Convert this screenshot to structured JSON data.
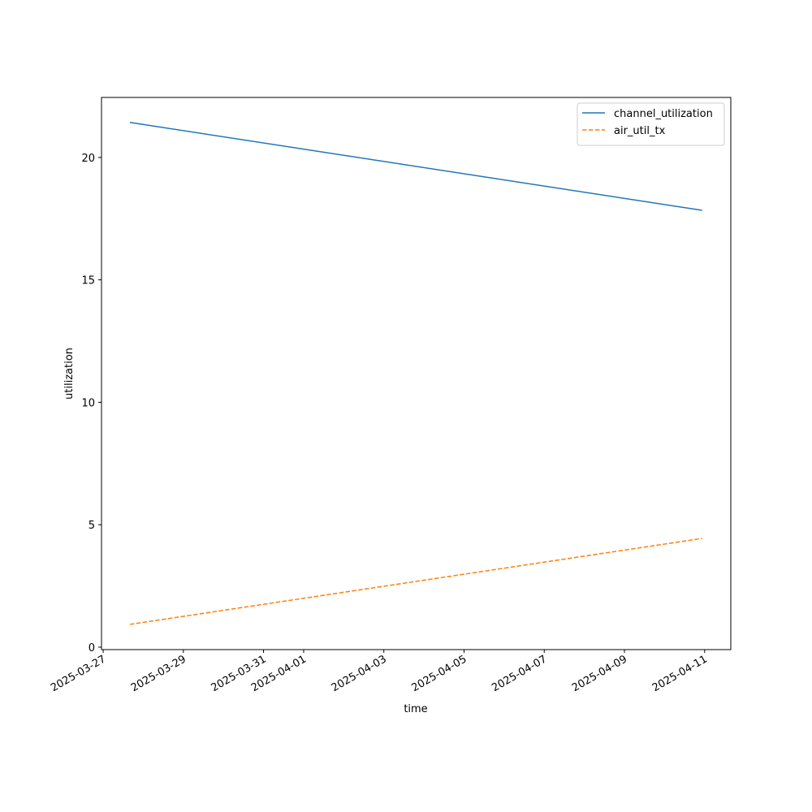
{
  "chart_data": {
    "type": "line",
    "x_label": "time",
    "y_label": "utilization",
    "x": [
      "2025-03-27T16:00",
      "2025-04-10T22:30"
    ],
    "series": [
      {
        "name": "channel_utilization",
        "color": "#1f77b4",
        "dash": "solid",
        "values": [
          21.43,
          17.84
        ]
      },
      {
        "name": "air_util_tx",
        "color": "#ff7f0e",
        "dash": "dashed",
        "values": [
          0.93,
          4.44
        ]
      }
    ],
    "xlim": [
      "2025-03-26T23:00",
      "2025-04-11T15:40"
    ],
    "xticks": [
      "2025-03-27",
      "2025-03-29",
      "2025-03-31",
      "2025-04-01",
      "2025-04-03",
      "2025-04-05",
      "2025-04-07",
      "2025-04-09",
      "2025-04-11"
    ],
    "ylim": [
      -0.1,
      22.45
    ],
    "yticks": [
      0,
      5,
      10,
      15,
      20
    ],
    "grid": false,
    "legend": "upper-right"
  }
}
